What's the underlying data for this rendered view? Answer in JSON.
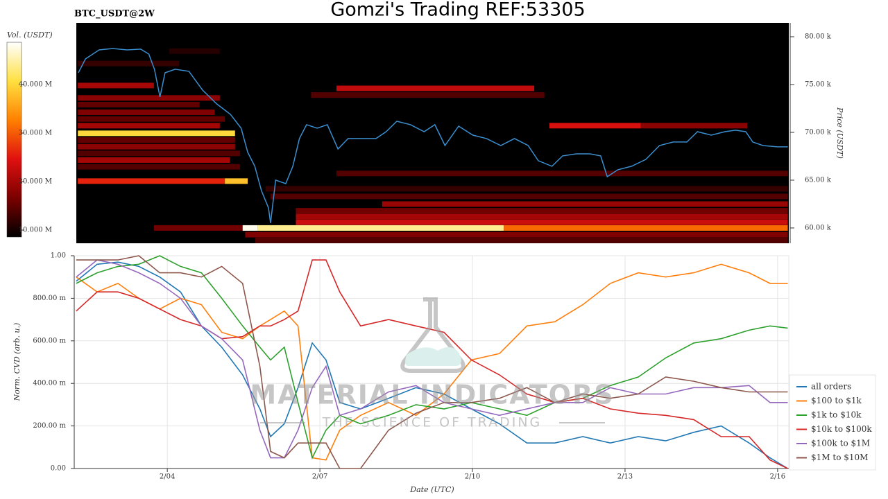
{
  "title": "Gomzi's Trading REF:53305",
  "watermark": {
    "title": "MATERIAL INDICATORS",
    "subtitle": "THE SCIENCE OF TRADING"
  },
  "chart_data": [
    {
      "type": "heatmap",
      "title": "BTC_USDT@2W",
      "ylabel": "Price (USDT)",
      "colorbar_label": "Vol. (USDT)",
      "xlim": [
        2.17,
        16.22
      ],
      "ylim": [
        58400,
        81450
      ],
      "yticks": [
        {
          "value": 60000,
          "label": "60.00 k"
        },
        {
          "value": 65000,
          "label": "65.00 k"
        },
        {
          "value": 70000,
          "label": "70.00 k"
        },
        {
          "value": 75000,
          "label": "75.00 k"
        },
        {
          "value": 80000,
          "label": "80.00 k"
        }
      ],
      "clim": [
        8570000,
        48700000
      ],
      "cticks": [
        {
          "value": 10000000,
          "label": "10.000 M"
        },
        {
          "value": 20000000,
          "label": "20.000 M"
        },
        {
          "value": 30000000,
          "label": "30.000 M"
        },
        {
          "value": 40000000,
          "label": "40.000 M"
        }
      ],
      "colormap": [
        "#000000",
        "#7a0000",
        "#e01010",
        "#ff8000",
        "#ffe040",
        "#ffffff"
      ],
      "bands": [
        {
          "price": 77200,
          "start": 2.2,
          "end": 4.2,
          "value": 12000000
        },
        {
          "price": 78500,
          "start": 4.0,
          "end": 5.0,
          "value": 11000000
        },
        {
          "price": 74900,
          "start": 2.2,
          "end": 3.7,
          "value": 20000000
        },
        {
          "price": 73600,
          "start": 2.2,
          "end": 5.0,
          "value": 18000000
        },
        {
          "price": 72900,
          "start": 2.2,
          "end": 4.6,
          "value": 15000000
        },
        {
          "price": 72100,
          "start": 2.2,
          "end": 4.9,
          "value": 17000000
        },
        {
          "price": 71400,
          "start": 2.2,
          "end": 5.1,
          "value": 15000000
        },
        {
          "price": 70700,
          "start": 2.2,
          "end": 5.0,
          "value": 20000000
        },
        {
          "price": 70700,
          "start": 11.5,
          "end": 13.3,
          "value": 24000000
        },
        {
          "price": 70700,
          "start": 13.3,
          "end": 15.4,
          "value": 18000000
        },
        {
          "price": 69900,
          "start": 2.2,
          "end": 5.3,
          "value": 40000000
        },
        {
          "price": 69200,
          "start": 2.2,
          "end": 5.3,
          "value": 15000000
        },
        {
          "price": 68500,
          "start": 2.2,
          "end": 5.3,
          "value": 18000000
        },
        {
          "price": 67800,
          "start": 2.2,
          "end": 5.4,
          "value": 14000000
        },
        {
          "price": 67100,
          "start": 2.2,
          "end": 5.2,
          "value": 20000000
        },
        {
          "price": 66400,
          "start": 2.2,
          "end": 5.4,
          "value": 14000000
        },
        {
          "price": 65700,
          "start": 7.3,
          "end": 16.2,
          "value": 14000000
        },
        {
          "price": 64900,
          "start": 2.2,
          "end": 5.1,
          "value": 26000000
        },
        {
          "price": 64900,
          "start": 5.1,
          "end": 5.55,
          "value": 38000000
        },
        {
          "price": 64100,
          "start": 5.9,
          "end": 16.2,
          "value": 12000000
        },
        {
          "price": 63300,
          "start": 6.0,
          "end": 16.2,
          "value": 14000000
        },
        {
          "price": 62500,
          "start": 8.2,
          "end": 16.2,
          "value": 19000000
        },
        {
          "price": 61800,
          "start": 6.5,
          "end": 16.2,
          "value": 16000000
        },
        {
          "price": 61200,
          "start": 6.5,
          "end": 16.2,
          "value": 20000000
        },
        {
          "price": 60600,
          "start": 6.5,
          "end": 16.2,
          "value": 23000000
        },
        {
          "price": 60000,
          "start": 3.7,
          "end": 5.45,
          "value": 16000000
        },
        {
          "price": 60000,
          "start": 5.45,
          "end": 5.75,
          "value": 48000000
        },
        {
          "price": 60000,
          "start": 5.75,
          "end": 10.6,
          "value": 44000000
        },
        {
          "price": 60000,
          "start": 10.6,
          "end": 16.2,
          "value": 31000000
        },
        {
          "price": 59300,
          "start": 5.5,
          "end": 16.2,
          "value": 17000000
        },
        {
          "price": 58700,
          "start": 5.7,
          "end": 16.2,
          "value": 14000000
        },
        {
          "price": 74600,
          "start": 7.3,
          "end": 11.2,
          "value": 22000000
        },
        {
          "price": 73900,
          "start": 6.8,
          "end": 11.4,
          "value": 14000000
        }
      ],
      "series": [
        {
          "color": "#3a8fd0",
          "x": [
            2.21,
            2.35,
            2.62,
            2.89,
            3.17,
            3.44,
            3.6,
            3.71,
            3.82,
            3.92,
            4.12,
            4.39,
            4.66,
            4.94,
            5.21,
            5.42,
            5.55,
            5.69,
            5.82,
            5.96,
            6.0,
            6.1,
            6.3,
            6.44,
            6.57,
            6.71,
            6.92,
            7.12,
            7.33,
            7.53,
            7.8,
            8.08,
            8.28,
            8.49,
            8.76,
            9.03,
            9.24,
            9.44,
            9.71,
            9.99,
            10.26,
            10.54,
            10.81,
            11.08,
            11.28,
            11.55,
            11.76,
            12.03,
            12.3,
            12.51,
            12.64,
            12.85,
            13.12,
            13.4,
            13.67,
            13.94,
            14.21,
            14.42,
            14.69,
            14.96,
            15.17,
            15.37,
            15.51,
            15.71,
            15.99,
            16.2
          ],
          "values": [
            76230,
            77680,
            78620,
            78770,
            78620,
            78700,
            78190,
            76600,
            73700,
            76230,
            76600,
            76380,
            74420,
            72970,
            71880,
            70430,
            67900,
            66450,
            63910,
            62100,
            60510,
            65000,
            64640,
            66450,
            69350,
            70800,
            70430,
            70800,
            68260,
            69350,
            69350,
            69350,
            70070,
            71160,
            70800,
            70070,
            70800,
            68620,
            70650,
            69710,
            69350,
            68620,
            69350,
            68620,
            67030,
            66450,
            67540,
            67750,
            67750,
            67540,
            65360,
            66090,
            66450,
            67170,
            68620,
            68990,
            68990,
            70070,
            69710,
            70070,
            70220,
            70070,
            68990,
            68620,
            68480,
            68480
          ]
        }
      ]
    },
    {
      "type": "line",
      "xlabel": "Date (UTC)",
      "ylabel": "Norm. CVD (arb. u.)",
      "grid": true,
      "legend": "lower right",
      "xlim": [
        2.17,
        16.22
      ],
      "ylim": [
        0,
        1
      ],
      "xticks": [
        {
          "value": 4,
          "label": "2/04"
        },
        {
          "value": 7,
          "label": "2/07"
        },
        {
          "value": 10,
          "label": "2/10"
        },
        {
          "value": 13,
          "label": "2/13"
        },
        {
          "value": 16,
          "label": "2/16"
        }
      ],
      "yticks": [
        {
          "value": 0,
          "label": "0.00"
        },
        {
          "value": 0.2,
          "label": "200.00 m"
        },
        {
          "value": 0.4,
          "label": "400.00 m"
        },
        {
          "value": 0.6,
          "label": "600.00 m"
        },
        {
          "value": 0.8,
          "label": "800.00 m"
        },
        {
          "value": 1,
          "label": "1.00"
        }
      ],
      "x": [
        2.21,
        2.62,
        3.03,
        3.44,
        3.85,
        4.26,
        4.67,
        5.07,
        5.48,
        5.82,
        6.03,
        6.3,
        6.57,
        6.85,
        7.12,
        7.39,
        7.8,
        8.35,
        8.89,
        9.44,
        9.98,
        10.53,
        11.07,
        11.62,
        12.17,
        12.71,
        13.26,
        13.8,
        14.35,
        14.89,
        15.44,
        15.85,
        16.2
      ],
      "series": [
        {
          "name": "all orders",
          "color": "#1f77b4",
          "values": [
            0.88,
            0.96,
            0.97,
            0.95,
            0.9,
            0.83,
            0.67,
            0.57,
            0.44,
            0.28,
            0.15,
            0.21,
            0.38,
            0.59,
            0.51,
            0.31,
            0.28,
            0.33,
            0.38,
            0.35,
            0.28,
            0.21,
            0.12,
            0.12,
            0.15,
            0.12,
            0.15,
            0.13,
            0.17,
            0.2,
            0.12,
            0.05,
            0
          ]
        },
        {
          "name": "$100 to $1k",
          "color": "#ff7f0e",
          "values": [
            0.9,
            0.83,
            0.87,
            0.8,
            0.75,
            0.8,
            0.77,
            0.64,
            0.61,
            0.67,
            0.7,
            0.74,
            0.67,
            0.05,
            0.04,
            0.18,
            0.25,
            0.31,
            0.25,
            0.35,
            0.51,
            0.54,
            0.67,
            0.69,
            0.77,
            0.87,
            0.92,
            0.9,
            0.92,
            0.96,
            0.92,
            0.87,
            0.87
          ]
        },
        {
          "name": "$1k to $10k",
          "color": "#2ca02c",
          "values": [
            0.87,
            0.92,
            0.95,
            0.96,
            1,
            0.95,
            0.92,
            0.8,
            0.67,
            0.57,
            0.51,
            0.57,
            0.31,
            0.05,
            0.18,
            0.25,
            0.21,
            0.25,
            0.3,
            0.28,
            0.31,
            0.28,
            0.25,
            0.31,
            0.33,
            0.39,
            0.43,
            0.52,
            0.59,
            0.61,
            0.65,
            0.67,
            0.66
          ]
        },
        {
          "name": "$10k to $100k",
          "color": "#d62728",
          "values": [
            0.74,
            0.83,
            0.83,
            0.8,
            0.75,
            0.7,
            0.67,
            0.61,
            0.62,
            0.67,
            0.67,
            0.7,
            0.74,
            0.98,
            0.98,
            0.83,
            0.67,
            0.7,
            0.67,
            0.64,
            0.51,
            0.44,
            0.35,
            0.31,
            0.33,
            0.28,
            0.26,
            0.25,
            0.23,
            0.15,
            0.15,
            0.04,
            0
          ]
        },
        {
          "name": "$100k to $1M",
          "color": "#9467bd",
          "values": [
            0.9,
            0.98,
            0.96,
            0.92,
            0.87,
            0.8,
            0.67,
            0.61,
            0.51,
            0.18,
            0.05,
            0.05,
            0.18,
            0.38,
            0.48,
            0.25,
            0.28,
            0.36,
            0.39,
            0.31,
            0.28,
            0.25,
            0.28,
            0.31,
            0.31,
            0.38,
            0.35,
            0.35,
            0.38,
            0.38,
            0.39,
            0.31,
            0.31
          ]
        },
        {
          "name": "$1M to $10M",
          "color": "#8c564b",
          "values": [
            0.98,
            0.98,
            0.98,
            1,
            0.92,
            0.92,
            0.9,
            0.95,
            0.87,
            0.48,
            0.08,
            0.05,
            0.12,
            0.12,
            0.12,
            0,
            0,
            0.18,
            0.26,
            0.31,
            0.31,
            0.33,
            0.38,
            0.31,
            0.35,
            0.33,
            0.35,
            0.43,
            0.41,
            0.38,
            0.36,
            0.36,
            0.36
          ]
        }
      ]
    }
  ]
}
